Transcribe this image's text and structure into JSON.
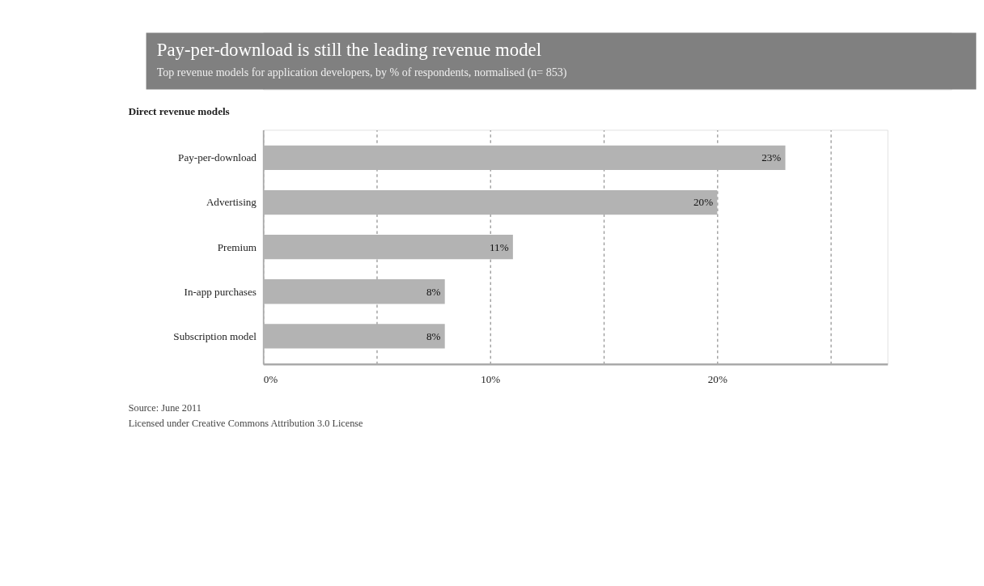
{
  "chart_data": {
    "type": "bar",
    "orientation": "horizontal",
    "title": "Pay-per-download is still the leading revenue model",
    "subtitle": "Top revenue models for application developers, by % of respondents, normalised (n= 853)",
    "ylabel": "Direct revenue models",
    "categories": [
      "Pay-per-download",
      "Advertising",
      "Premium",
      "In-app purchases",
      "Subscription model"
    ],
    "values": [
      23,
      20,
      11,
      8,
      8
    ],
    "value_labels": [
      "23%",
      "20%",
      "11%",
      "8%",
      "8%"
    ],
    "color": "#b3b3b3",
    "xlim": [
      0,
      27.5
    ],
    "xticks": [
      {
        "value": 0,
        "label": "0%"
      },
      {
        "value": 5,
        "label": null
      },
      {
        "value": 10,
        "label": "10%"
      },
      {
        "value": 15,
        "label": null
      },
      {
        "value": 20,
        "label": "20%"
      },
      {
        "value": 25,
        "label": null
      }
    ],
    "grid": "x",
    "annotations": [
      "Source: June 2011",
      "Licensed under Creative Commons Attribution 3.0 License"
    ]
  }
}
